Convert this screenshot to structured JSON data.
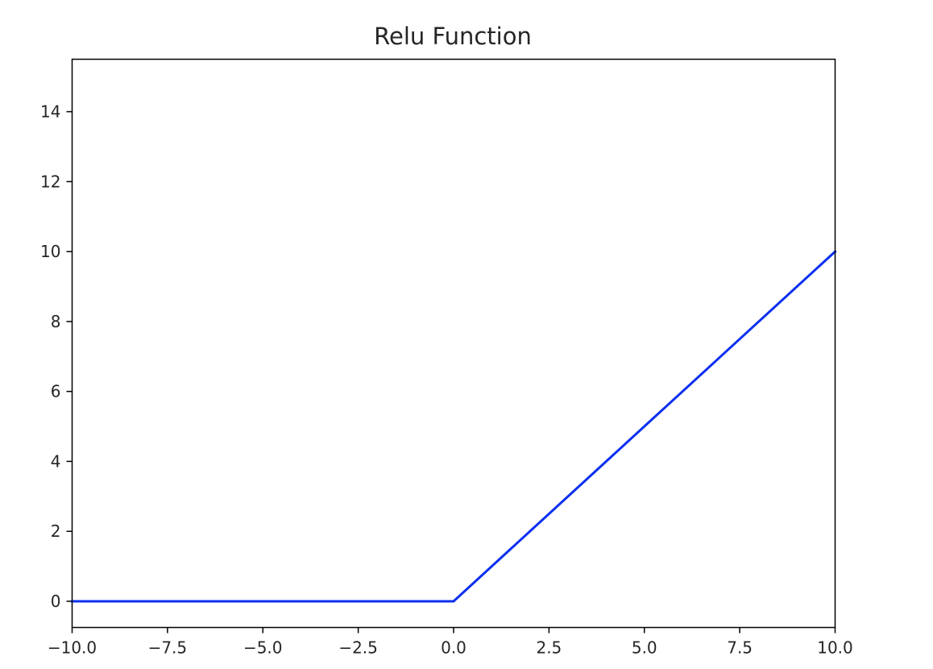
{
  "chart_data": {
    "type": "line",
    "title": "Relu Function",
    "xlabel": "",
    "ylabel": "",
    "xlim": [
      -10.0,
      10.0
    ],
    "ylim": [
      -0.75,
      15.5
    ],
    "grid": false,
    "x_ticks": [
      -10.0,
      -7.5,
      -5.0,
      -2.5,
      0.0,
      2.5,
      5.0,
      7.5,
      10.0
    ],
    "x_tick_labels": [
      "−10.0",
      "−7.5",
      "−5.0",
      "−2.5",
      "0.0",
      "2.5",
      "5.0",
      "7.5",
      "10.0"
    ],
    "y_ticks": [
      0,
      2,
      4,
      6,
      8,
      10,
      12,
      14
    ],
    "y_tick_labels": [
      "0",
      "2",
      "4",
      "6",
      "8",
      "10",
      "12",
      "14"
    ],
    "series": [
      {
        "x": [
          -10.0,
          -7.5,
          -5.0,
          -2.5,
          0.0,
          2.5,
          5.0,
          7.5,
          10.0
        ],
        "y": [
          0.0,
          0.0,
          0.0,
          0.0,
          0.0,
          2.5,
          5.0,
          7.5,
          10.0
        ],
        "color": "#0b2ff0"
      }
    ]
  }
}
